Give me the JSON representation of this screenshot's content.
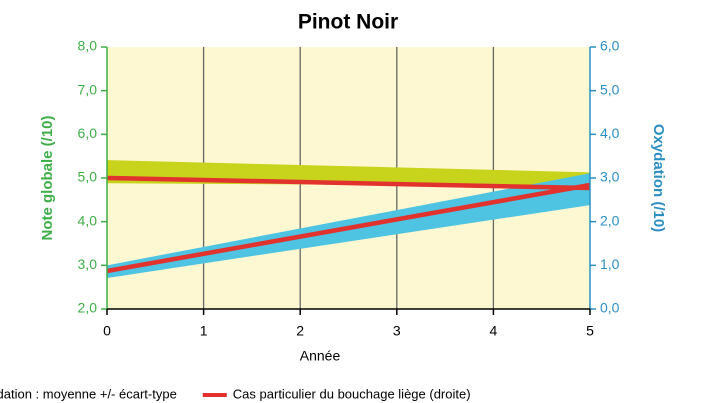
{
  "chart_data": {
    "type": "line",
    "title": "Pinot Noir",
    "xlabel": "Année",
    "ylabel": "Note globale (/10)",
    "y2label": "Oxydation (/10)",
    "x": [
      0,
      5
    ],
    "xlim": [
      0,
      5
    ],
    "xticks": [
      0,
      1,
      2,
      3,
      4,
      5
    ],
    "ylim": [
      2,
      8
    ],
    "yticks": [
      {
        "value": 2,
        "label": "2,0"
      },
      {
        "value": 3,
        "label": "3,0"
      },
      {
        "value": 4,
        "label": "4,0"
      },
      {
        "value": 5,
        "label": "5,0"
      },
      {
        "value": 6,
        "label": "6,0"
      },
      {
        "value": 7,
        "label": "7,0"
      },
      {
        "value": 8,
        "label": "8,0"
      }
    ],
    "y2lim": [
      0,
      6
    ],
    "y2ticks": [
      {
        "value": 0,
        "label": "0,0"
      },
      {
        "value": 1,
        "label": "1,0"
      },
      {
        "value": 2,
        "label": "2,0"
      },
      {
        "value": 3,
        "label": "3,0"
      },
      {
        "value": 4,
        "label": "4,0"
      },
      {
        "value": 5,
        "label": "5,0"
      },
      {
        "value": 6,
        "label": "6,0"
      }
    ],
    "grid": "x",
    "ycolor": "#3fae49",
    "y2color": "#2b8fc2",
    "series": [
      {
        "kind": "band",
        "color": "#c8d31c",
        "lower": [
          4.88,
          4.81
        ],
        "upper": [
          5.41,
          5.13
        ]
      },
      {
        "kind": "band",
        "name": "ydation :  moyenne +/- écart-type",
        "color": "#4ec3e2",
        "axis": "y2",
        "lower": [
          0.71,
          2.38
        ],
        "upper": [
          1.0,
          3.11
        ]
      },
      {
        "kind": "line",
        "name": "Cas particulier du bouchage liège (droite)",
        "color": "#e1322d",
        "values": [
          5.0,
          4.77
        ]
      },
      {
        "kind": "line",
        "color": "#e1322d",
        "axis": "y2",
        "values": [
          0.87,
          2.84
        ]
      }
    ]
  }
}
